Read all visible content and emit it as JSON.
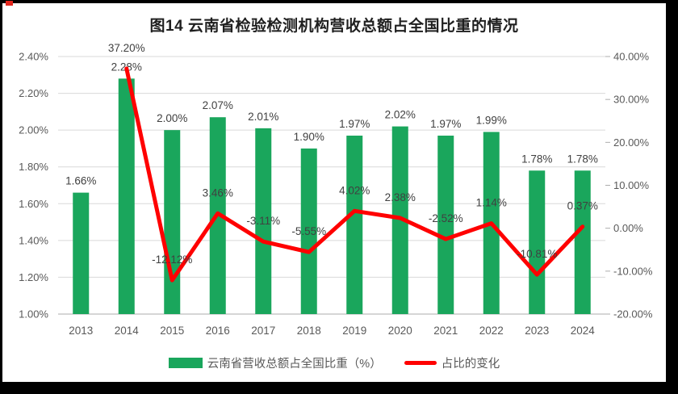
{
  "window": {
    "frame_color": "#000000",
    "background": "#ffffff",
    "marker_color": "#e2251b"
  },
  "chart_data": {
    "type": "combo",
    "title": "图14 云南省检验检测机构营收总额占全国比重的情况",
    "categories": [
      "2013",
      "2014",
      "2015",
      "2016",
      "2017",
      "2018",
      "2019",
      "2020",
      "2021",
      "2022",
      "2023",
      "2024"
    ],
    "series": [
      {
        "name": "云南省营收总额占全国比重（%）",
        "type": "bar",
        "axis": "left",
        "color": "#1AA65C",
        "values": [
          1.66,
          2.28,
          2.0,
          2.07,
          2.01,
          1.9,
          1.97,
          2.02,
          1.97,
          1.99,
          1.78,
          1.78
        ],
        "labels": [
          "1.66%",
          "2.28%",
          "2.00%",
          "2.07%",
          "2.01%",
          "1.90%",
          "1.97%",
          "2.02%",
          "1.97%",
          "1.99%",
          "1.78%",
          "1.78%"
        ]
      },
      {
        "name": "占比的变化",
        "type": "line",
        "axis": "right",
        "color": "#FF0000",
        "values": [
          null,
          37.2,
          -12.12,
          3.46,
          -3.11,
          -5.55,
          4.02,
          2.38,
          -2.52,
          1.14,
          -10.81,
          0.37
        ],
        "labels": [
          null,
          "37.20%",
          "-12.12%",
          "3.46%",
          "-3.11%",
          "-5.55%",
          "4.02%",
          "2.38%",
          "-2.52%",
          "1.14%",
          "-10.81%",
          "0.37%"
        ]
      }
    ],
    "left_axis": {
      "min": 1.0,
      "max": 2.4,
      "step": 0.2,
      "ticks": [
        "2.40%",
        "2.20%",
        "2.00%",
        "1.80%",
        "1.60%",
        "1.40%",
        "1.20%",
        "1.00%"
      ]
    },
    "right_axis": {
      "min": -20,
      "max": 40,
      "step": 10,
      "ticks": [
        "40.00%",
        "30.00%",
        "20.00%",
        "10.00%",
        "0.00%",
        "-10.00%",
        "-20.00%"
      ]
    },
    "grid": true,
    "legend_position": "bottom",
    "colors": {
      "gridline": "#D9D9D9",
      "axis_line": "#ADADAD",
      "axis_text": "#595959",
      "label_text": "#404040",
      "title_text": "#1f1f1f"
    }
  }
}
